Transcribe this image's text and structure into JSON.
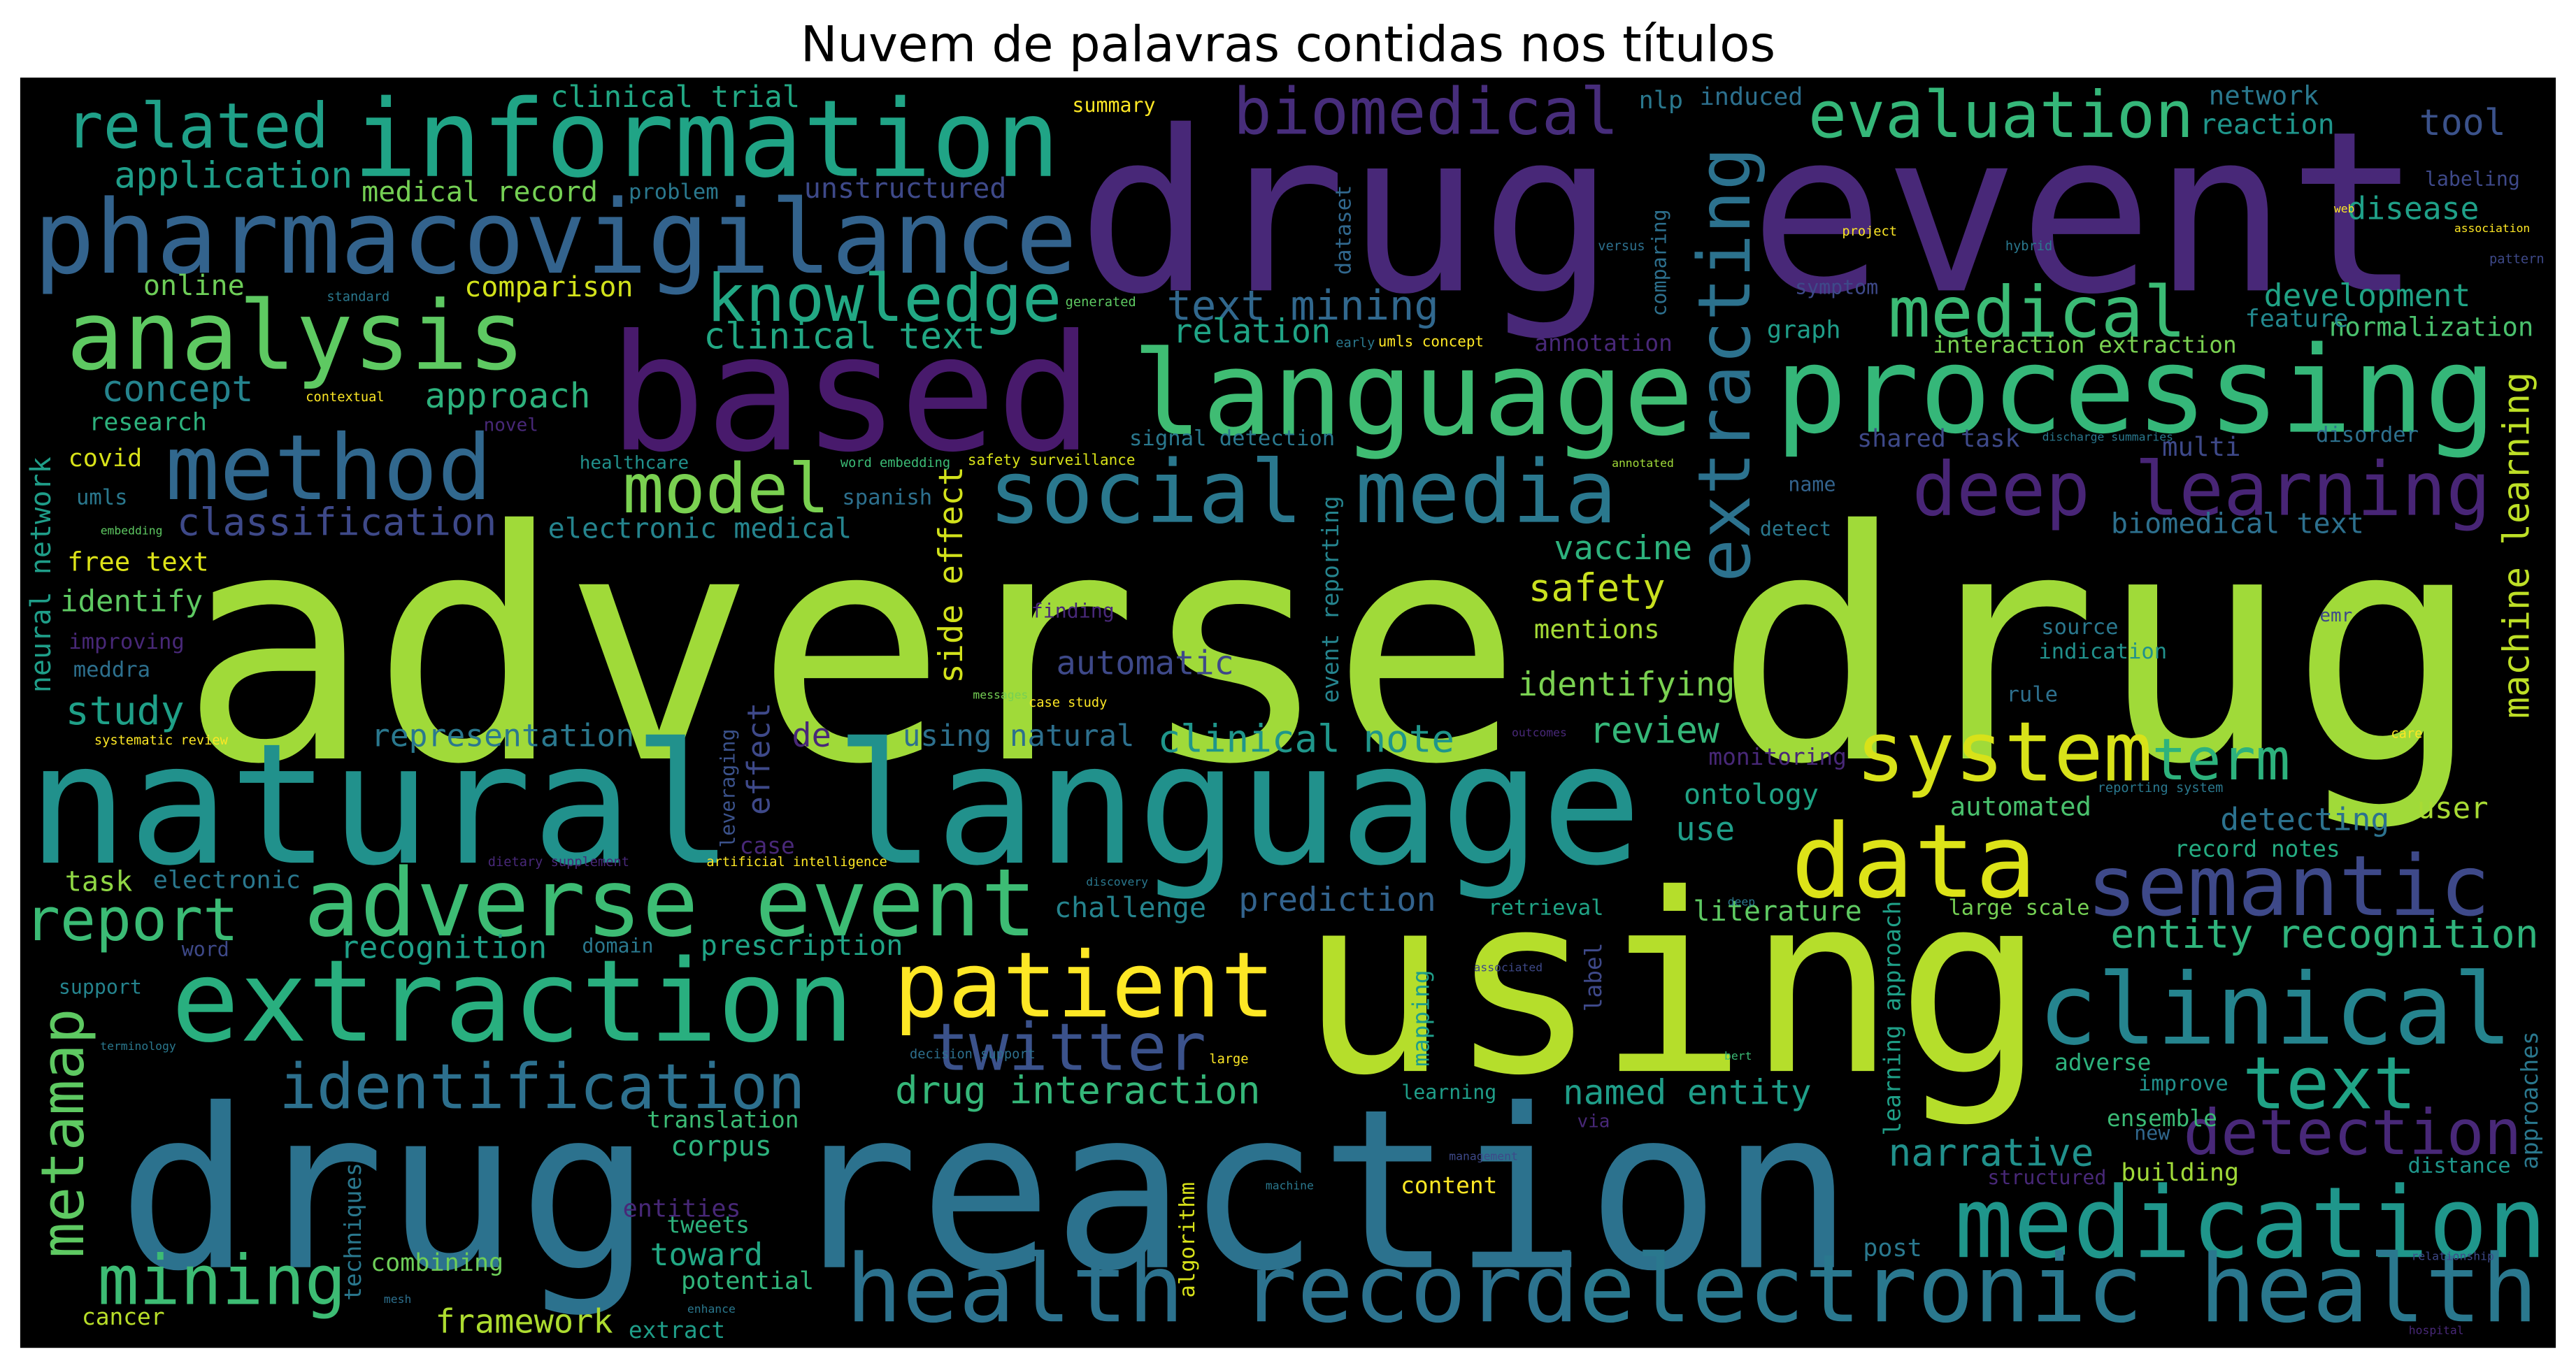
{
  "chart_data": {
    "type": "wordcloud",
    "title": "Nuvem de palavras contidas nos títulos",
    "background": "#000000",
    "words": [
      {
        "text": "adverse drug",
        "weight": 1.0,
        "color": "#a0da39"
      },
      {
        "text": "drug event",
        "weight": 0.701,
        "color": "#482878"
      },
      {
        "text": "using",
        "weight": 0.778,
        "color": "#b5de2b"
      },
      {
        "text": "drug reaction",
        "weight": 0.696,
        "color": "#2c728e"
      },
      {
        "text": "natural language",
        "weight": 0.526,
        "color": "#21918c"
      },
      {
        "text": "based",
        "weight": 0.505,
        "color": "#481a6c"
      },
      {
        "text": "language",
        "weight": 0.366,
        "color": "#3fbc73"
      },
      {
        "text": "processing",
        "weight": 0.376,
        "color": "#35b779"
      },
      {
        "text": "information",
        "weight": 0.335,
        "color": "#20a486"
      },
      {
        "text": "pharmacovigilance",
        "weight": 0.32,
        "color": "#33638d"
      },
      {
        "text": "analysis",
        "weight": 0.299,
        "color": "#5ec962"
      },
      {
        "text": "method",
        "weight": 0.284,
        "color": "#31688e"
      },
      {
        "text": "social media",
        "weight": 0.273,
        "color": "#2a788e"
      },
      {
        "text": "extraction",
        "weight": 0.356,
        "color": "#29af7f"
      },
      {
        "text": "adverse event",
        "weight": 0.294,
        "color": "#3dbc74"
      },
      {
        "text": "patient",
        "weight": 0.284,
        "color": "#fde725"
      },
      {
        "text": "data",
        "weight": 0.32,
        "color": "#dde318"
      },
      {
        "text": "system",
        "weight": 0.258,
        "color": "#d8e219"
      },
      {
        "text": "clinical",
        "weight": 0.309,
        "color": "#25848e"
      },
      {
        "text": "semantic",
        "weight": 0.263,
        "color": "#3e4989"
      },
      {
        "text": "medication",
        "weight": 0.309,
        "color": "#1f968b"
      },
      {
        "text": "text",
        "weight": 0.227,
        "color": "#20a386"
      },
      {
        "text": "health record",
        "weight": 0.294,
        "color": "#2c728e"
      },
      {
        "text": "electronic health",
        "weight": 0.294,
        "color": "#2a788e"
      },
      {
        "text": "identification",
        "weight": 0.196,
        "color": "#2d708e"
      },
      {
        "text": "twitter",
        "weight": 0.206,
        "color": "#3b528b"
      },
      {
        "text": "deep learning",
        "weight": 0.232,
        "color": "#482576"
      },
      {
        "text": "medical",
        "weight": 0.222,
        "color": "#3bbb75"
      },
      {
        "text": "evaluation",
        "weight": 0.201,
        "color": "#35b779"
      },
      {
        "text": "biomedical",
        "weight": 0.201,
        "color": "#472d7b"
      },
      {
        "text": "knowledge",
        "weight": 0.206,
        "color": "#22a884"
      },
      {
        "text": "related",
        "weight": 0.196,
        "color": "#1fa088"
      },
      {
        "text": "mining",
        "weight": 0.216,
        "color": "#3dbc74"
      },
      {
        "text": "report",
        "weight": 0.186,
        "color": "#3bbb75"
      },
      {
        "text": "detection",
        "weight": 0.196,
        "color": "#482878"
      },
      {
        "text": "metamap",
        "weight": 0.186,
        "color": "#5ec962"
      },
      {
        "text": "extracting",
        "weight": 0.227,
        "color": "#2c728e"
      },
      {
        "text": "model",
        "weight": 0.216,
        "color": "#7ad151"
      },
      {
        "text": "term",
        "weight": 0.18,
        "color": "#2db27d"
      },
      {
        "text": "narrative",
        "weight": 0.119,
        "color": "#21918c"
      },
      {
        "text": "framework",
        "weight": 0.103,
        "color": "#addc30"
      },
      {
        "text": "text mining",
        "weight": 0.129,
        "color": "#31688e"
      },
      {
        "text": "clinical text",
        "weight": 0.113,
        "color": "#22a884"
      },
      {
        "text": "relation",
        "weight": 0.103,
        "color": "#20a486"
      },
      {
        "text": "concept",
        "weight": 0.113,
        "color": "#25848e"
      },
      {
        "text": "approach",
        "weight": 0.108,
        "color": "#2db27d"
      },
      {
        "text": "application",
        "weight": 0.113,
        "color": "#1f9e89"
      },
      {
        "text": "online",
        "weight": 0.088,
        "color": "#6ece58"
      },
      {
        "text": "comparison",
        "weight": 0.088,
        "color": "#d2e21b"
      },
      {
        "text": "research",
        "weight": 0.077,
        "color": "#2db27d"
      },
      {
        "text": "covid",
        "weight": 0.077,
        "color": "#d8e219"
      },
      {
        "text": "classification",
        "weight": 0.119,
        "color": "#3e4989"
      },
      {
        "text": "electronic medical",
        "weight": 0.088,
        "color": "#25848e"
      },
      {
        "text": "free text",
        "weight": 0.082,
        "color": "#dde318"
      },
      {
        "text": "identify",
        "weight": 0.093,
        "color": "#5ec962"
      },
      {
        "text": "study",
        "weight": 0.124,
        "color": "#1fa088"
      },
      {
        "text": "representation",
        "weight": 0.098,
        "color": "#2a788e"
      },
      {
        "text": "de",
        "weight": 0.103,
        "color": "#482878"
      },
      {
        "text": "using natural",
        "weight": 0.093,
        "color": "#2d708e"
      },
      {
        "text": "clinical note",
        "weight": 0.119,
        "color": "#1f968b"
      },
      {
        "text": "review",
        "weight": 0.113,
        "color": "#35b779"
      },
      {
        "text": "vaccine",
        "weight": 0.103,
        "color": "#2db27d"
      },
      {
        "text": "safety",
        "weight": 0.119,
        "color": "#cae11f"
      },
      {
        "text": "mentions",
        "weight": 0.082,
        "color": "#a5db36"
      },
      {
        "text": "identifying",
        "weight": 0.103,
        "color": "#7ad151"
      },
      {
        "text": "automatic",
        "weight": 0.103,
        "color": "#3e4989"
      },
      {
        "text": "ontology",
        "weight": 0.088,
        "color": "#20a486"
      },
      {
        "text": "use",
        "weight": 0.103,
        "color": "#1f9e89"
      },
      {
        "text": "automated",
        "weight": 0.082,
        "color": "#4ac16d"
      },
      {
        "text": "detecting",
        "weight": 0.098,
        "color": "#2c728e"
      },
      {
        "text": "user",
        "weight": 0.093,
        "color": "#a8db34"
      },
      {
        "text": "entity recognition",
        "weight": 0.124,
        "color": "#2fb47c"
      },
      {
        "text": "prediction",
        "weight": 0.103,
        "color": "#33638d"
      },
      {
        "text": "challenge",
        "weight": 0.088,
        "color": "#25848e"
      },
      {
        "text": "literature",
        "weight": 0.088,
        "color": "#5ec962"
      },
      {
        "text": "recognition",
        "weight": 0.098,
        "color": "#1fa088"
      },
      {
        "text": "prescription",
        "weight": 0.088,
        "color": "#20a486"
      },
      {
        "text": "drug interaction",
        "weight": 0.119,
        "color": "#35b779"
      },
      {
        "text": "named entity",
        "weight": 0.108,
        "color": "#1f9e89"
      },
      {
        "text": "corpus",
        "weight": 0.088,
        "color": "#2db27d"
      },
      {
        "text": "translation",
        "weight": 0.072,
        "color": "#3bbb75"
      },
      {
        "text": "task",
        "weight": 0.088,
        "color": "#8fd744"
      },
      {
        "text": "electronic",
        "weight": 0.077,
        "color": "#2a788e"
      },
      {
        "text": "tweets",
        "weight": 0.072,
        "color": "#2db27d"
      },
      {
        "text": "toward",
        "weight": 0.098,
        "color": "#22a884"
      },
      {
        "text": "potential",
        "weight": 0.077,
        "color": "#31b57b"
      },
      {
        "text": "combining",
        "weight": 0.077,
        "color": "#6ece58"
      },
      {
        "text": "cancer",
        "weight": 0.072,
        "color": "#b8de29"
      },
      {
        "text": "extract",
        "weight": 0.072,
        "color": "#1f9e89"
      },
      {
        "text": "post",
        "weight": 0.077,
        "color": "#2a788e"
      },
      {
        "text": "building",
        "weight": 0.077,
        "color": "#a0da39"
      },
      {
        "text": "content",
        "weight": 0.072,
        "color": "#fde725"
      },
      {
        "text": "tool",
        "weight": 0.113,
        "color": "#3b528b"
      },
      {
        "text": "disease",
        "weight": 0.098,
        "color": "#1fa088"
      },
      {
        "text": "development",
        "weight": 0.098,
        "color": "#20a486"
      },
      {
        "text": "normalization",
        "weight": 0.082,
        "color": "#4ac16d"
      },
      {
        "text": "interaction extraction",
        "weight": 0.072,
        "color": "#7ad151"
      },
      {
        "text": "graph",
        "weight": 0.077,
        "color": "#1f9e89"
      },
      {
        "text": "feature",
        "weight": 0.077,
        "color": "#23888e"
      },
      {
        "text": "network",
        "weight": 0.082,
        "color": "#2a788e"
      },
      {
        "text": "reaction",
        "weight": 0.088,
        "color": "#1f968b"
      },
      {
        "text": "multi",
        "weight": 0.082,
        "color": "#3e4989"
      },
      {
        "text": "disorder",
        "weight": 0.067,
        "color": "#2d708e"
      },
      {
        "text": "shared task",
        "weight": 0.077,
        "color": "#3e4989"
      },
      {
        "text": "biomedical text",
        "weight": 0.088,
        "color": "#2d708e"
      },
      {
        "text": "name",
        "weight": 0.062,
        "color": "#33638d"
      },
      {
        "text": "detect",
        "weight": 0.062,
        "color": "#2a788e"
      },
      {
        "text": "machine learning",
        "weight": 0.113,
        "color": "#bddf26"
      },
      {
        "text": "neural network",
        "weight": 0.088,
        "color": "#1f9e89"
      },
      {
        "text": "side effect",
        "weight": 0.103,
        "color": "#d2e21b"
      },
      {
        "text": "effect",
        "weight": 0.098,
        "color": "#3e4989"
      },
      {
        "text": "event reporting",
        "weight": 0.072,
        "color": "#25848e"
      },
      {
        "text": "learning approach",
        "weight": 0.072,
        "color": "#1fa088"
      },
      {
        "text": "approaches",
        "weight": 0.072,
        "color": "#2a788e"
      },
      {
        "text": "label",
        "weight": 0.072,
        "color": "#3e4989"
      },
      {
        "text": "mapping",
        "weight": 0.072,
        "color": "#1f9e89"
      },
      {
        "text": "algorithm",
        "weight": 0.067,
        "color": "#d8e219"
      },
      {
        "text": "techniques",
        "weight": 0.072,
        "color": "#2a788e"
      },
      {
        "text": "leveraging",
        "weight": 0.062,
        "color": "#3b528b"
      },
      {
        "text": "comparing",
        "weight": 0.062,
        "color": "#2d708e"
      },
      {
        "text": "dataset",
        "weight": 0.067,
        "color": "#31688e"
      },
      {
        "text": "clinical trial",
        "weight": 0.093,
        "color": "#22a884"
      },
      {
        "text": "medical record",
        "weight": 0.088,
        "color": "#75d054"
      },
      {
        "text": "unstructured",
        "weight": 0.088,
        "color": "#3e4989"
      },
      {
        "text": "problem",
        "weight": 0.067,
        "color": "#2a788e"
      },
      {
        "text": "summary",
        "weight": 0.062,
        "color": "#fde725"
      },
      {
        "text": "nlp",
        "weight": 0.077,
        "color": "#2a788e"
      },
      {
        "text": "induced",
        "weight": 0.077,
        "color": "#2d708e"
      },
      {
        "text": "adverse",
        "weight": 0.072,
        "color": "#2db27d"
      },
      {
        "text": "improve",
        "weight": 0.067,
        "color": "#21918c"
      },
      {
        "text": "ensemble",
        "weight": 0.072,
        "color": "#3bbb75"
      },
      {
        "text": "new",
        "weight": 0.062,
        "color": "#31688e"
      },
      {
        "text": "distance",
        "weight": 0.067,
        "color": "#1f968b"
      },
      {
        "text": "structured",
        "weight": 0.062,
        "color": "#482878"
      },
      {
        "text": "record notes",
        "weight": 0.072,
        "color": "#25ac82"
      },
      {
        "text": "large scale",
        "weight": 0.067,
        "color": "#75d054"
      },
      {
        "text": "rule",
        "weight": 0.067,
        "color": "#2d708e"
      },
      {
        "text": "indication",
        "weight": 0.067,
        "color": "#21918c"
      },
      {
        "text": "source",
        "weight": 0.067,
        "color": "#2a788e"
      },
      {
        "text": "annotation",
        "weight": 0.072,
        "color": "#482878"
      },
      {
        "text": "signal detection",
        "weight": 0.067,
        "color": "#2a788e"
      },
      {
        "text": "umls concept",
        "weight": 0.046,
        "color": "#fde725"
      },
      {
        "text": "umls",
        "weight": 0.067,
        "color": "#2a788e"
      },
      {
        "text": "meddra",
        "weight": 0.067,
        "color": "#2d708e"
      },
      {
        "text": "improving",
        "weight": 0.067,
        "color": "#482878"
      },
      {
        "text": "support",
        "weight": 0.062,
        "color": "#25848e"
      },
      {
        "text": "word",
        "weight": 0.062,
        "color": "#3e4989"
      },
      {
        "text": "domain",
        "weight": 0.062,
        "color": "#2a788e"
      },
      {
        "text": "case",
        "weight": 0.072,
        "color": "#482878"
      },
      {
        "text": "monitoring",
        "weight": 0.072,
        "color": "#482878"
      },
      {
        "text": "retrieval",
        "weight": 0.067,
        "color": "#20a486"
      },
      {
        "text": "spanish",
        "weight": 0.067,
        "color": "#2d708e"
      },
      {
        "text": "healthcare",
        "weight": 0.057,
        "color": "#21918c"
      },
      {
        "text": "novel",
        "weight": 0.057,
        "color": "#482878"
      },
      {
        "text": "entities",
        "weight": 0.077,
        "color": "#482878"
      },
      {
        "text": "emr",
        "weight": 0.057,
        "color": "#3e4989"
      },
      {
        "text": "symptom",
        "weight": 0.062,
        "color": "#3e4989"
      },
      {
        "text": "finding",
        "weight": 0.062,
        "color": "#482878"
      },
      {
        "text": "labeling",
        "weight": 0.062,
        "color": "#3e4989"
      },
      {
        "text": "learning",
        "weight": 0.062,
        "color": "#1f9e89"
      },
      {
        "text": "via",
        "weight": 0.057,
        "color": "#482878"
      },
      {
        "text": "project",
        "weight": 0.041,
        "color": "#fde725"
      },
      {
        "text": "versus",
        "weight": 0.041,
        "color": "#2d708e"
      },
      {
        "text": "hybrid",
        "weight": 0.041,
        "color": "#2a788e"
      },
      {
        "text": "pattern",
        "weight": 0.041,
        "color": "#3e4989"
      },
      {
        "text": "association",
        "weight": 0.036,
        "color": "#fde725"
      },
      {
        "text": "web",
        "weight": 0.036,
        "color": "#fde725"
      },
      {
        "text": "contextual",
        "weight": 0.041,
        "color": "#fde725"
      },
      {
        "text": "standard",
        "weight": 0.041,
        "color": "#2a788e"
      },
      {
        "text": "generated",
        "weight": 0.041,
        "color": "#5ec962"
      },
      {
        "text": "early",
        "weight": 0.041,
        "color": "#2a788e"
      },
      {
        "text": "embedding",
        "weight": 0.036,
        "color": "#5ec962"
      },
      {
        "text": "word embedding",
        "weight": 0.041,
        "color": "#3bbb75"
      },
      {
        "text": "safety surveillance",
        "weight": 0.046,
        "color": "#d8e219"
      },
      {
        "text": "annotated",
        "weight": 0.036,
        "color": "#a0da39"
      },
      {
        "text": "discharge summaries",
        "weight": 0.036,
        "color": "#2a788e"
      },
      {
        "text": "messages",
        "weight": 0.036,
        "color": "#75d054"
      },
      {
        "text": "case study",
        "weight": 0.041,
        "color": "#fde725"
      },
      {
        "text": "outcomes",
        "weight": 0.036,
        "color": "#482878"
      },
      {
        "text": "care",
        "weight": 0.041,
        "color": "#fde725"
      },
      {
        "text": "reporting system",
        "weight": 0.041,
        "color": "#2a788e"
      },
      {
        "text": "systematic review",
        "weight": 0.041,
        "color": "#fde725"
      },
      {
        "text": "artificial intelligence",
        "weight": 0.041,
        "color": "#fde725"
      },
      {
        "text": "dietary supplement",
        "weight": 0.041,
        "color": "#482878"
      },
      {
        "text": "discovery",
        "weight": 0.036,
        "color": "#2a788e"
      },
      {
        "text": "associated",
        "weight": 0.036,
        "color": "#3e4989"
      },
      {
        "text": "deep",
        "weight": 0.036,
        "color": "#2a788e"
      },
      {
        "text": "terminology",
        "weight": 0.036,
        "color": "#2a788e"
      },
      {
        "text": "decision support",
        "weight": 0.041,
        "color": "#2d708e"
      },
      {
        "text": "large",
        "weight": 0.041,
        "color": "#fde725"
      },
      {
        "text": "bert",
        "weight": 0.036,
        "color": "#3bbb75"
      },
      {
        "text": "management",
        "weight": 0.036,
        "color": "#3e4989"
      },
      {
        "text": "machine",
        "weight": 0.036,
        "color": "#2a788e"
      },
      {
        "text": "mesh",
        "weight": 0.036,
        "color": "#2d708e"
      },
      {
        "text": "enhance",
        "weight": 0.036,
        "color": "#2a788e"
      },
      {
        "text": "relationship",
        "weight": 0.036,
        "color": "#3e4989"
      },
      {
        "text": "hospital",
        "weight": 0.036,
        "color": "#482878"
      }
    ]
  }
}
